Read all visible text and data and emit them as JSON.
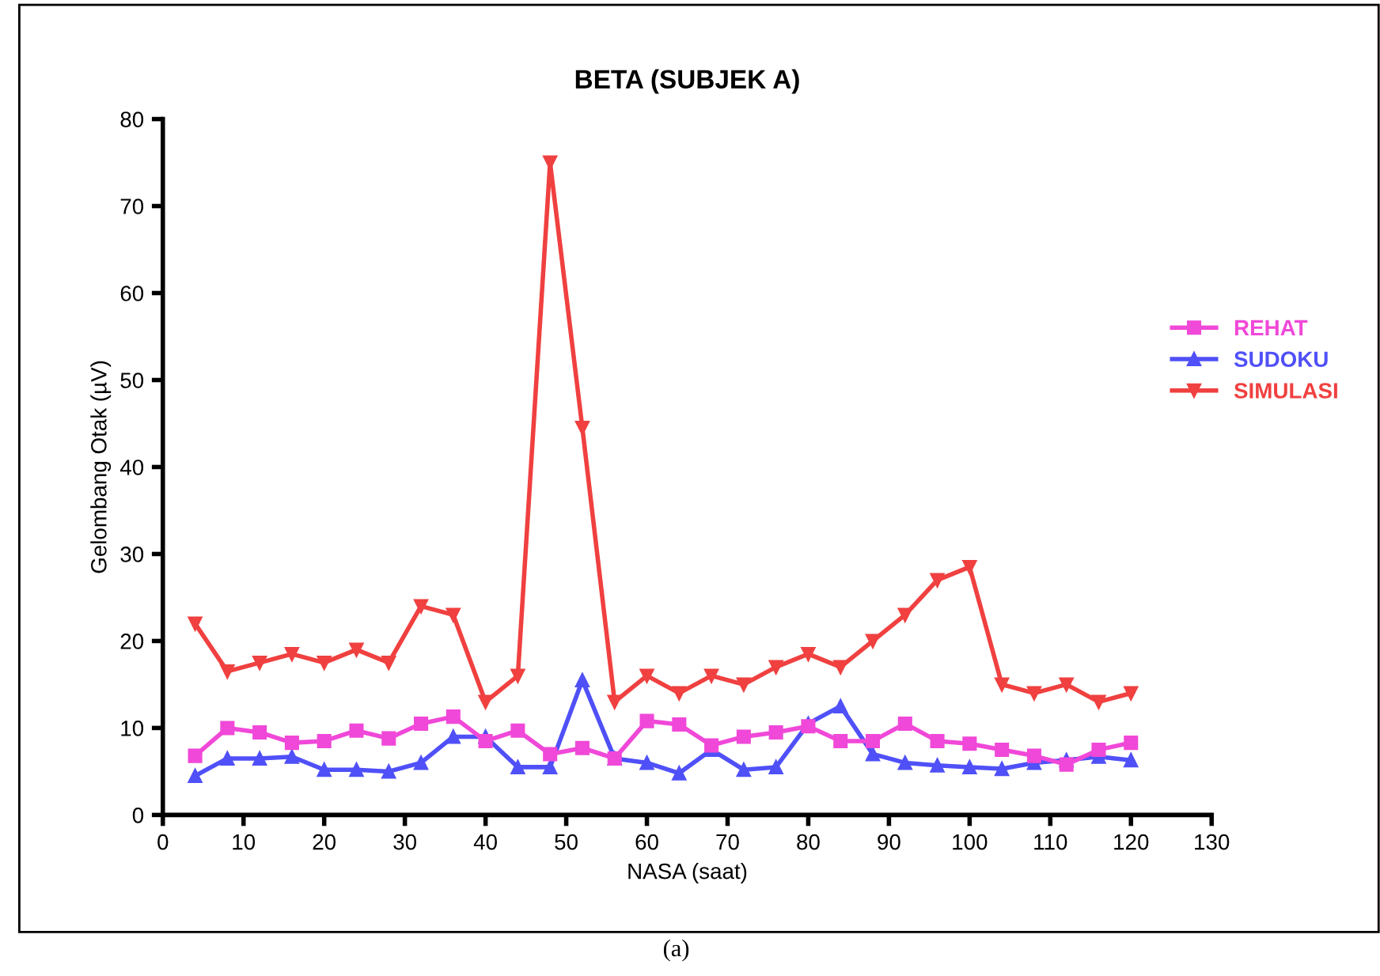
{
  "chart_data": {
    "type": "line",
    "title": "BETA (SUBJEK A)",
    "xlabel": "NASA (saat)",
    "ylabel": "Gelombang Otak (µV)",
    "annotations": [
      "(a)"
    ],
    "x": [
      4,
      8,
      12,
      16,
      20,
      24,
      28,
      32,
      36,
      40,
      44,
      48,
      52,
      56,
      60,
      64,
      68,
      72,
      76,
      80,
      84,
      88,
      92,
      96,
      100,
      104,
      108,
      112,
      116,
      120
    ],
    "series": [
      {
        "name": "REHAT",
        "color": "#f048d8",
        "marker": "square",
        "values": [
          6.8,
          10,
          9.5,
          8.3,
          8.5,
          9.7,
          8.8,
          10.5,
          11.3,
          8.5,
          9.7,
          7,
          7.7,
          6.5,
          10.8,
          10.4,
          8,
          9,
          9.5,
          10.2,
          8.5,
          8.5,
          10.5,
          8.5,
          8.2,
          7.5,
          6.8,
          5.8,
          7.5,
          8.3
        ]
      },
      {
        "name": "SUDOKU",
        "color": "#5050f8",
        "marker": "triangle",
        "values": [
          4.5,
          6.5,
          6.5,
          6.7,
          5.2,
          5.2,
          5,
          6,
          9,
          9,
          5.5,
          5.5,
          15.5,
          6.5,
          6,
          4.8,
          7.5,
          5.2,
          5.5,
          10.5,
          12.5,
          7,
          6,
          5.7,
          5.5,
          5.3,
          6,
          6.3,
          6.7,
          6.3
        ]
      },
      {
        "name": "SIMULASI",
        "color": "#f04040",
        "marker": "triangle_down",
        "values": [
          22,
          16.5,
          17.5,
          18.5,
          17.5,
          19,
          17.5,
          24,
          23,
          13,
          16,
          75,
          44.5,
          13,
          16,
          14,
          16,
          15,
          17,
          18.5,
          17,
          20,
          23,
          27,
          28.5,
          15,
          14,
          15,
          13,
          14
        ]
      }
    ],
    "xlim": [
      0,
      130
    ],
    "xticks": [
      0,
      10,
      20,
      30,
      40,
      50,
      60,
      70,
      80,
      90,
      100,
      110,
      120,
      130
    ],
    "ylim": [
      0,
      80
    ],
    "yticks": [
      0,
      10,
      20,
      30,
      40,
      50,
      60,
      70,
      80
    ],
    "grid": false,
    "legend": "right",
    "line_style": "solid"
  }
}
